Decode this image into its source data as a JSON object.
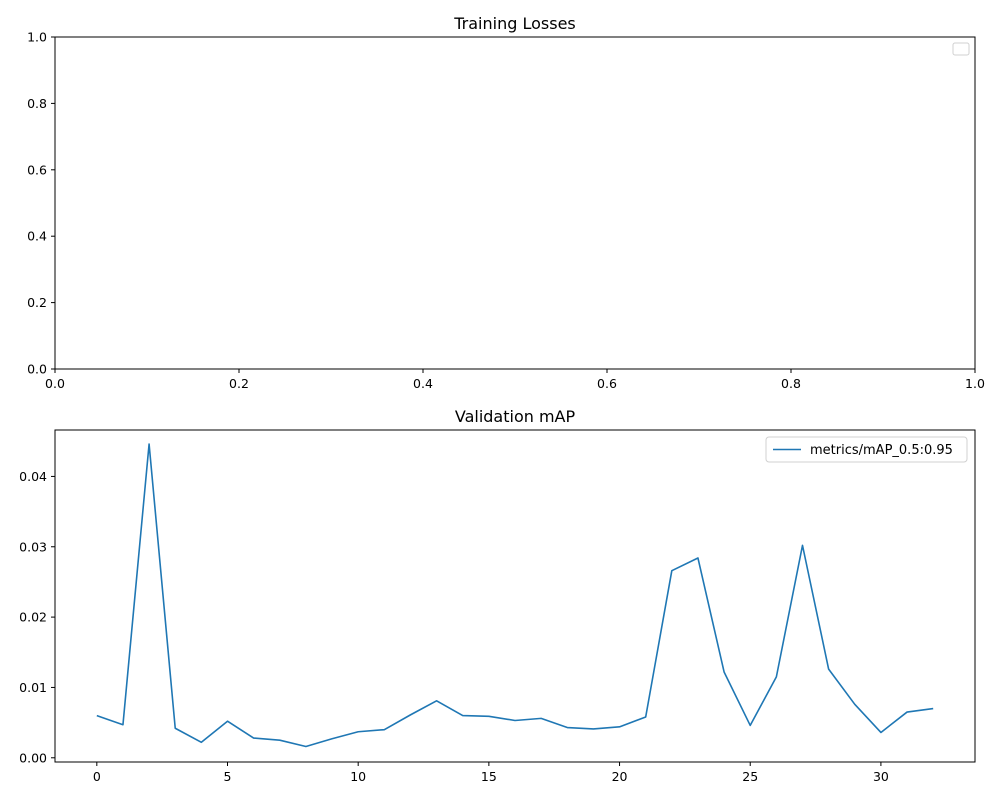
{
  "chart_data": [
    {
      "type": "line",
      "title": "Training Losses",
      "xlabel": "",
      "ylabel": "",
      "xlim": [
        0,
        1
      ],
      "ylim": [
        0,
        1
      ],
      "x_ticks": [
        "0.0",
        "0.2",
        "0.4",
        "0.6",
        "0.8",
        "1.0"
      ],
      "y_ticks": [
        "0.0",
        "0.2",
        "0.4",
        "0.6",
        "0.8",
        "1.0"
      ],
      "series": [],
      "legend": "top-right",
      "grid": false
    },
    {
      "type": "line",
      "title": "Validation mAP",
      "xlabel": "",
      "ylabel": "",
      "xlim": [
        -1.6,
        33.6
      ],
      "ylim": [
        -0.0006,
        0.0466
      ],
      "x_ticks": [
        "0",
        "5",
        "10",
        "15",
        "20",
        "25",
        "30"
      ],
      "y_ticks": [
        "0.00",
        "0.01",
        "0.02",
        "0.03",
        "0.04"
      ],
      "x": [
        0,
        1,
        2,
        3,
        4,
        5,
        6,
        7,
        8,
        9,
        10,
        11,
        12,
        13,
        14,
        15,
        16,
        17,
        18,
        19,
        20,
        21,
        22,
        23,
        24,
        25,
        26,
        27,
        28,
        29,
        30,
        31,
        32
      ],
      "series": [
        {
          "name": "metrics/mAP_0.5:0.95",
          "color": "#1f77b4",
          "values": [
            0.006,
            0.0047,
            0.0446,
            0.0042,
            0.0022,
            0.0052,
            0.0028,
            0.0025,
            0.0016,
            0.0027,
            0.0037,
            0.004,
            0.0061,
            0.0081,
            0.006,
            0.0059,
            0.0053,
            0.0056,
            0.0043,
            0.0041,
            0.0044,
            0.0058,
            0.0266,
            0.0284,
            0.0122,
            0.0046,
            0.0115,
            0.0302,
            0.0126,
            0.0076,
            0.0036,
            0.0065,
            0.007
          ]
        }
      ],
      "legend": "top-right",
      "grid": false
    }
  ]
}
